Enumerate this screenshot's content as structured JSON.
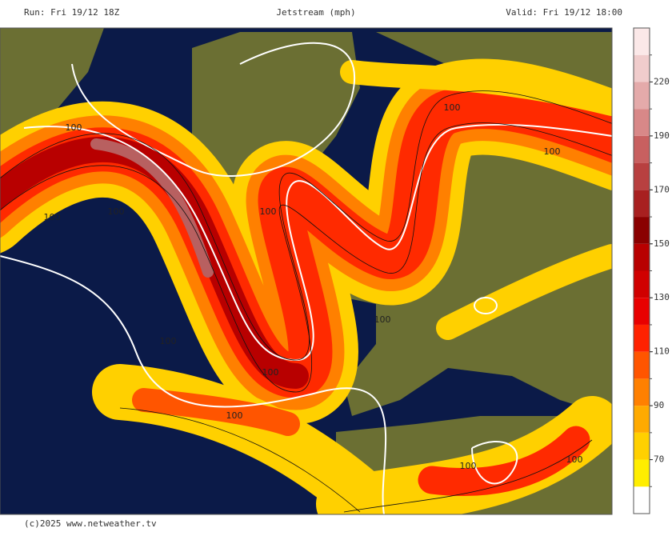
{
  "header": {
    "run": "Run: Fri 19/12 18Z",
    "title": "Jetstream (mph)",
    "valid": "Valid: Fri 19/12 18:00"
  },
  "map": {
    "contour_labels": [
      "100",
      "100",
      "100",
      "100",
      "100",
      "100",
      "100",
      "100",
      "100",
      "100",
      "100",
      "100"
    ]
  },
  "colorbar": {
    "bounds": [
      60,
      70,
      80,
      90,
      100,
      110,
      120,
      130,
      140,
      150,
      160,
      170,
      180,
      190,
      205,
      220,
      235
    ],
    "colors": [
      "#ffffff",
      "#ffee00",
      "#ffd000",
      "#ffaa00",
      "#ff8000",
      "#ff5500",
      "#ff2200",
      "#e80000",
      "#d00000",
      "#b80000",
      "#8a0000",
      "#a82020",
      "#b84040",
      "#c86060",
      "#d88888",
      "#e4aaaa",
      "#f0cccc",
      "#fbe8e8"
    ],
    "ticks": [
      70,
      90,
      110,
      130,
      150,
      170,
      190,
      220
    ]
  },
  "footer": {
    "credit": "(c)2025 www.netweather.tv"
  }
}
